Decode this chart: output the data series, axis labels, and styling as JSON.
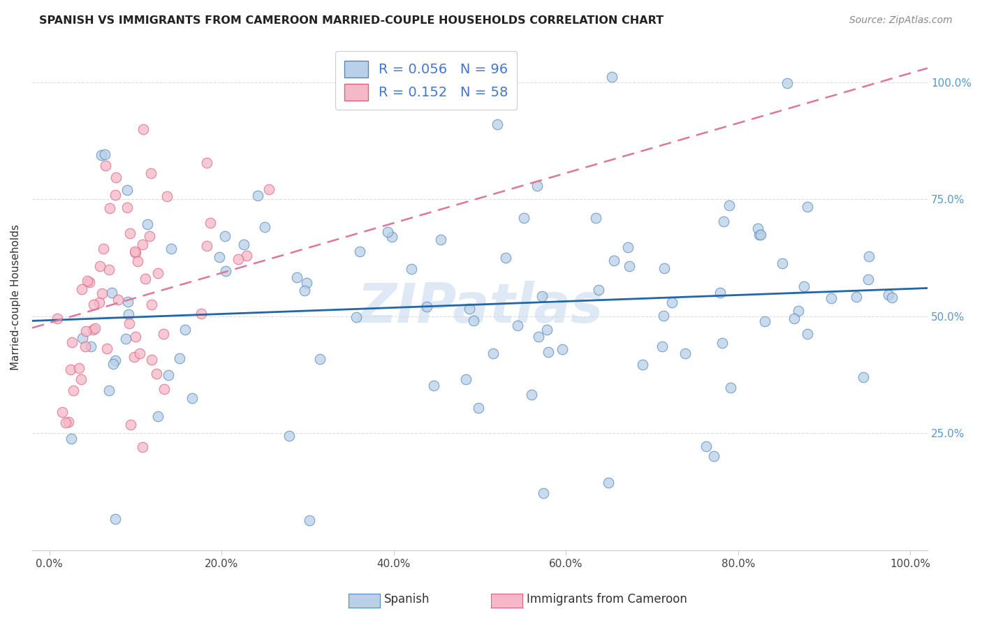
{
  "title": "SPANISH VS IMMIGRANTS FROM CAMEROON MARRIED-COUPLE HOUSEHOLDS CORRELATION CHART",
  "source": "Source: ZipAtlas.com",
  "ylabel": "Married-couple Households",
  "ytick_labels": [
    "100.0%",
    "75.0%",
    "50.0%",
    "25.0%"
  ],
  "ytick_vals": [
    1.0,
    0.75,
    0.5,
    0.25
  ],
  "xtick_vals": [
    0.0,
    0.2,
    0.4,
    0.6,
    0.8,
    1.0
  ],
  "xtick_labels": [
    "0.0%",
    "20.0%",
    "40.0%",
    "60.0%",
    "80.0%",
    "100.0%"
  ],
  "xlim": [
    -0.02,
    1.02
  ],
  "ylim": [
    0.0,
    1.08
  ],
  "watermark": "ZIPatlas",
  "legend_label1": "Spanish",
  "legend_label2": "Immigrants from Cameroon",
  "R1": 0.056,
  "N1": 96,
  "R2": 0.152,
  "N2": 58,
  "color_blue": "#b8d0e8",
  "color_pink": "#f5b8c8",
  "edge_blue": "#5588bb",
  "edge_pink": "#e06080",
  "line_blue": "#2266aa",
  "line_pink": "#dd7799",
  "background_color": "#ffffff",
  "blue_line_y0": 0.49,
  "blue_line_y1": 0.56,
  "pink_line_y0": 0.475,
  "pink_line_y1": 1.03,
  "grid_color": "#dddddd",
  "title_color": "#222222",
  "source_color": "#888888",
  "ytick_color": "#5599cc",
  "xtick_color": "#444444"
}
